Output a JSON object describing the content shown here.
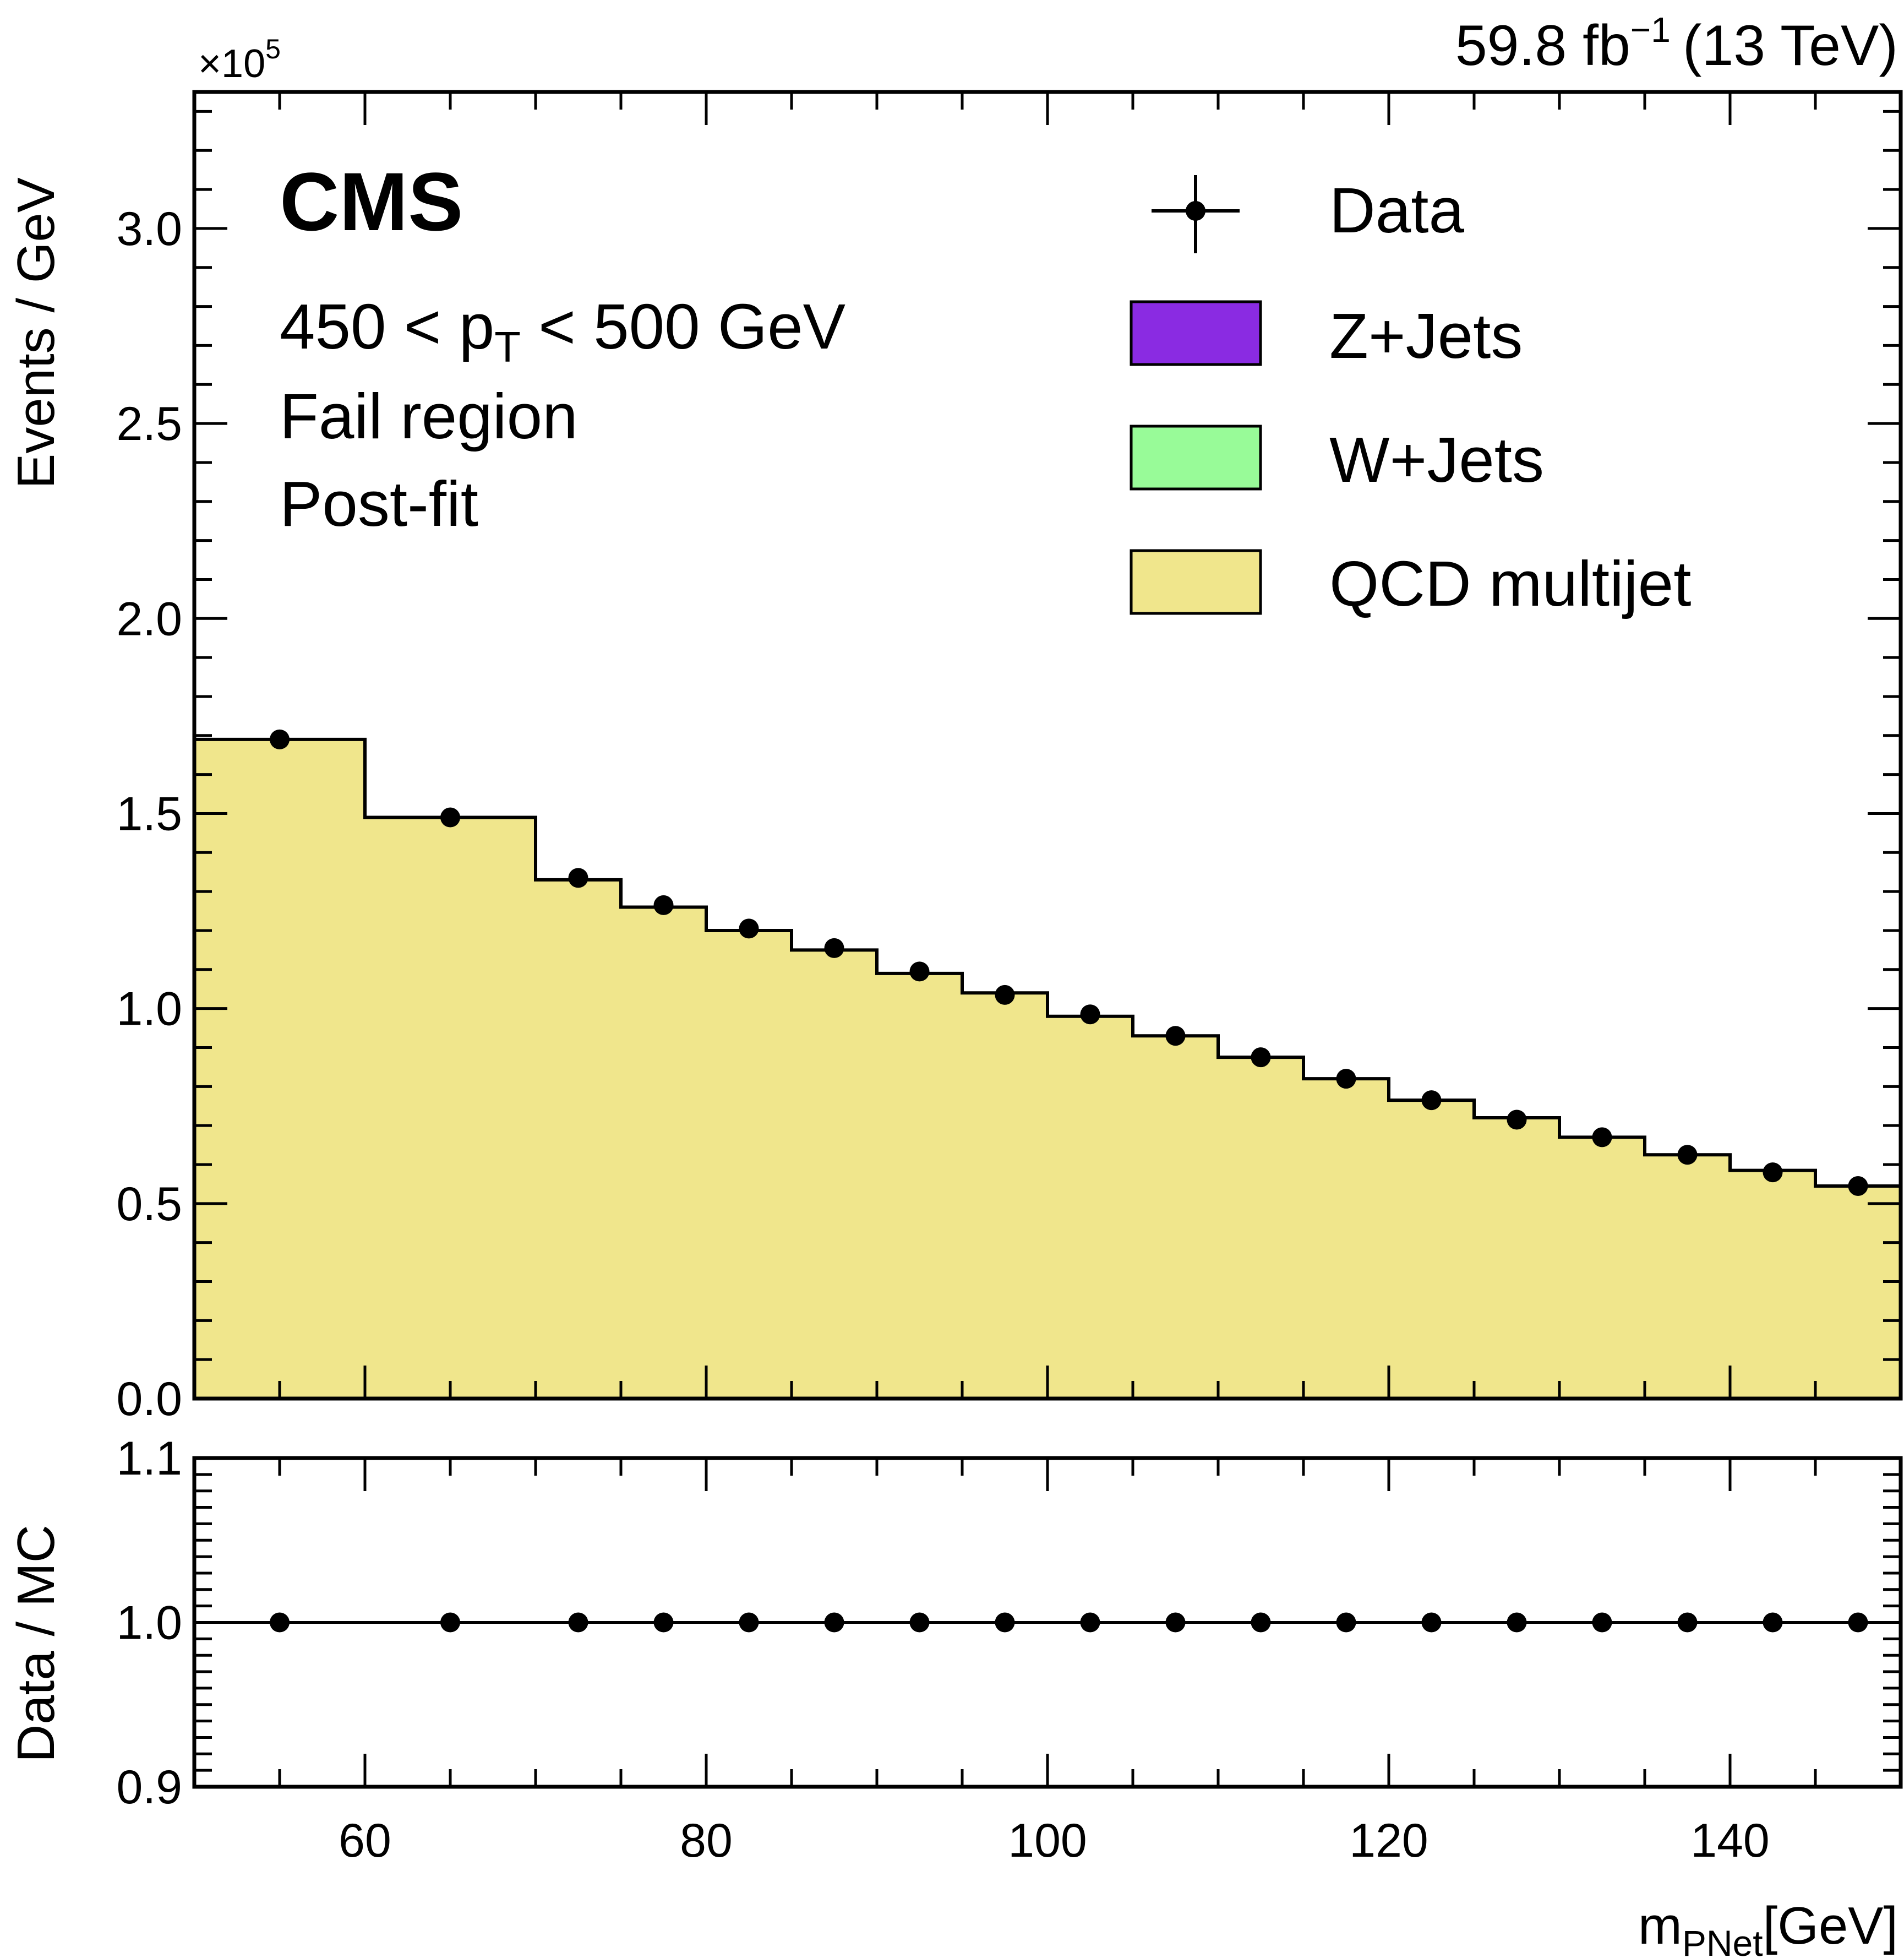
{
  "chart_data": [
    {
      "type": "bar",
      "subtype": "stacked-step-histogram",
      "title": "",
      "xlabel_main": "m",
      "xlabel_sub": "PNet",
      "xlabel_unit": "[GeV]",
      "ylabel": "Events / GeV",
      "y_multiplier_prefix": "×10",
      "y_multiplier_exp": "5",
      "xlim": [
        50,
        150
      ],
      "ylim": [
        0,
        3.35
      ],
      "xticks": [
        "60",
        "80",
        "100",
        "120",
        "140"
      ],
      "yticks": [
        "0.0",
        "0.5",
        "1.0",
        "1.5",
        "2.0",
        "2.5",
        "3.0"
      ],
      "bin_edges": [
        50,
        60,
        70,
        75,
        80,
        85,
        90,
        95,
        100,
        105,
        110,
        115,
        120,
        125,
        130,
        135,
        140,
        145,
        150
      ],
      "series": [
        {
          "name": "QCD multijet",
          "color": "#f0e68c",
          "values": [
            1.69,
            1.49,
            1.33,
            1.26,
            1.2,
            1.15,
            1.09,
            1.04,
            0.98,
            0.93,
            0.875,
            0.82,
            0.765,
            0.72,
            0.67,
            0.625,
            0.585,
            0.545
          ]
        },
        {
          "name": "W+Jets",
          "color": "#98fb98",
          "values": [
            0,
            0,
            0,
            0,
            0,
            0,
            0,
            0,
            0,
            0,
            0,
            0,
            0,
            0,
            0,
            0,
            0,
            0
          ]
        },
        {
          "name": "Z+Jets",
          "color": "#8a2be2",
          "values": [
            0,
            0,
            0,
            0,
            0,
            0,
            0,
            0,
            0,
            0,
            0,
            0,
            0,
            0,
            0,
            0,
            0,
            0
          ]
        }
      ],
      "data_points": {
        "name": "Data",
        "x": [
          55,
          65,
          72.5,
          77.5,
          82.5,
          87.5,
          92.5,
          97.5,
          102.5,
          107.5,
          112.5,
          117.5,
          122.5,
          127.5,
          132.5,
          137.5,
          142.5,
          147.5
        ],
        "y": [
          1.69,
          1.49,
          1.335,
          1.265,
          1.205,
          1.155,
          1.095,
          1.035,
          0.985,
          0.93,
          0.875,
          0.82,
          0.765,
          0.715,
          0.67,
          0.625,
          0.58,
          0.545
        ]
      },
      "legend": [
        "Data",
        "Z+Jets",
        "W+Jets",
        "QCD multijet"
      ],
      "legend_position": "top-right",
      "grid": false
    },
    {
      "type": "scatter",
      "title": "",
      "ylabel": "Data / MC",
      "xlim": [
        50,
        150
      ],
      "ylim": [
        0.9,
        1.1
      ],
      "yticks": [
        "0.9",
        "1.0",
        "1.1"
      ],
      "reference_line": 1.0,
      "x": [
        55,
        65,
        72.5,
        77.5,
        82.5,
        87.5,
        92.5,
        97.5,
        102.5,
        107.5,
        112.5,
        117.5,
        122.5,
        127.5,
        132.5,
        137.5,
        142.5,
        147.5
      ],
      "y": [
        1.0,
        1.0,
        1.0,
        1.0,
        1.0,
        1.0,
        1.0,
        1.0,
        1.0,
        1.0,
        1.0,
        1.0,
        1.0,
        1.0,
        1.0,
        1.0,
        1.0,
        1.0
      ]
    }
  ],
  "annotations": {
    "experiment": "CMS",
    "lumi_main": "59.8 fb",
    "lumi_sup": "−1",
    "lumi_energy": "(13 TeV)",
    "pt_range_lo": "450 < p",
    "pt_sub": "T",
    "pt_range_hi": " < 500 GeV",
    "region": "Fail region",
    "fit": "Post-fit"
  },
  "colors": {
    "qcd": "#f0e68c",
    "wjets": "#98fb98",
    "zjets": "#8a2be2",
    "line": "#000000"
  }
}
